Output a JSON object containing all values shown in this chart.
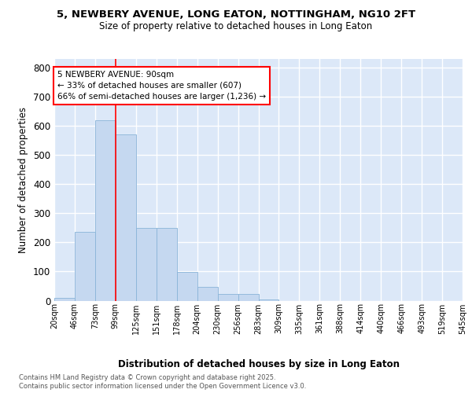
{
  "title_line1": "5, NEWBERY AVENUE, LONG EATON, NOTTINGHAM, NG10 2FT",
  "title_line2": "Size of property relative to detached houses in Long Eaton",
  "xlabel": "Distribution of detached houses by size in Long Eaton",
  "ylabel": "Number of detached properties",
  "bins_labels": [
    "20sqm",
    "46sqm",
    "73sqm",
    "99sqm",
    "125sqm",
    "151sqm",
    "178sqm",
    "204sqm",
    "230sqm",
    "256sqm",
    "283sqm",
    "309sqm",
    "335sqm",
    "361sqm",
    "388sqm",
    "414sqm",
    "440sqm",
    "466sqm",
    "493sqm",
    "519sqm",
    "545sqm"
  ],
  "bar_values": [
    10,
    235,
    620,
    570,
    250,
    250,
    98,
    48,
    22,
    22,
    5,
    0,
    0,
    0,
    0,
    0,
    0,
    0,
    0,
    0
  ],
  "bar_color": "#c5d8f0",
  "bar_edge_color": "#8ab4d8",
  "plot_bg_color": "#dce8f8",
  "fig_bg_color": "#ffffff",
  "grid_color": "#ffffff",
  "annotation_text": "5 NEWBERY AVENUE: 90sqm\n← 33% of detached houses are smaller (607)\n66% of semi-detached houses are larger (1,236) →",
  "red_line_bar_index": 3,
  "ylim": [
    0,
    830
  ],
  "yticks": [
    0,
    100,
    200,
    300,
    400,
    500,
    600,
    700,
    800
  ],
  "footer_line1": "Contains HM Land Registry data © Crown copyright and database right 2025.",
  "footer_line2": "Contains public sector information licensed under the Open Government Licence v3.0."
}
